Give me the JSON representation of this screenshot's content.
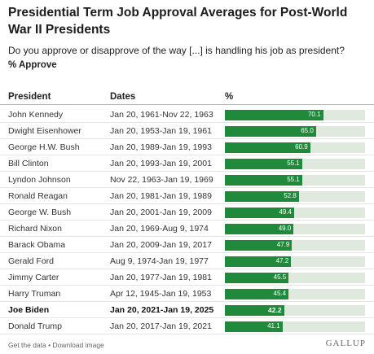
{
  "title": "Presidential Term Job Approval Averages for Post-World War II Presidents",
  "subtitle": "Do you approve or disapprove of the way [...] is handling his job as president?",
  "measure": "% Approve",
  "headers": {
    "president": "President",
    "dates": "Dates",
    "pct": "%"
  },
  "footer": "Get the data • Download image",
  "brand": "GALLUP",
  "colors": {
    "bar": "#1f8a3b",
    "track": "#dfe9dd"
  },
  "chart_data": {
    "type": "bar",
    "title": "Presidential Term Job Approval Averages for Post-World War II Presidents",
    "categories": [
      "John Kennedy",
      "Dwight Eisenhower",
      "George H.W. Bush",
      "Bill Clinton",
      "Lyndon Johnson",
      "Ronald Reagan",
      "George W. Bush",
      "Richard Nixon",
      "Barack Obama",
      "Gerald Ford",
      "Jimmy Carter",
      "Harry Truman",
      "Joe Biden",
      "Donald Trump"
    ],
    "dates": [
      "Jan 20, 1961-Nov 22, 1963",
      "Jan 20, 1953-Jan 19, 1961",
      "Jan 20, 1989-Jan 19, 1993",
      "Jan 20, 1993-Jan 19, 2001",
      "Nov 22, 1963-Jan 19, 1969",
      "Jan 20, 1981-Jan 19, 1989",
      "Jan 20, 2001-Jan 19, 2009",
      "Jan 20, 1969-Aug 9, 1974",
      "Jan 20, 2009-Jan 19, 2017",
      "Aug 9, 1974-Jan 19, 1977",
      "Jan 20, 1977-Jan 19, 1981",
      "Apr 12, 1945-Jan 19, 1953",
      "Jan 20, 2021-Jan 19, 2025",
      "Jan 20, 2017-Jan 19, 2021"
    ],
    "values": [
      70.1,
      65.0,
      60.9,
      55.1,
      55.1,
      52.8,
      49.4,
      49.0,
      47.9,
      47.2,
      45.5,
      45.4,
      42.2,
      41.1
    ],
    "value_labels": [
      "70.1",
      "65.0",
      "60.9",
      "55.1",
      "55.1",
      "52.8",
      "49.4",
      "49.0",
      "47.9",
      "47.2",
      "45.5",
      "45.4",
      "42.2",
      "41.1"
    ],
    "highlighted": "Joe Biden",
    "ylim": [
      0,
      100
    ]
  }
}
